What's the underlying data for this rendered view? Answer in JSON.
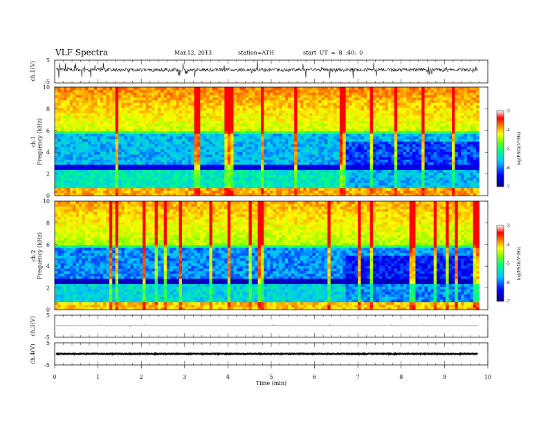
{
  "header": {
    "title": "VLF Spectra",
    "date": "Mar.12, 2013",
    "station": "station=ATH",
    "start": "start UT = 8 :40: 0"
  },
  "colors": {
    "colormap": [
      "#000080",
      "#0000ff",
      "#00c0ff",
      "#00ff80",
      "#80ff00",
      "#ffff00",
      "#ff8000",
      "#ff0000",
      "#ffffff"
    ],
    "trace": "#000000"
  },
  "chart_data": [
    {
      "type": "line",
      "panel": "ch1-waveform",
      "ylabel": "ch.1(V)",
      "ylim": [
        -5,
        5
      ],
      "yticks": [
        "5",
        "-5"
      ],
      "xlim": [
        0,
        10
      ]
    },
    {
      "type": "heatmap",
      "panel": "ch1-spectrogram",
      "ylabel": "ch.1\nFrequency (kHz)",
      "ylim": [
        0,
        10
      ],
      "yticks": [
        "0",
        "2",
        "4",
        "6",
        "8",
        "10"
      ],
      "xlim": [
        0,
        9.8
      ],
      "colorbar": {
        "label": "log(PSD)(V²/Hz)",
        "range": [
          -7,
          -3
        ],
        "ticks": [
          "-3",
          "-4",
          "-5",
          "-6",
          "-7"
        ]
      }
    },
    {
      "type": "heatmap",
      "panel": "ch2-spectrogram",
      "ylabel": "ch.2\nFrequency (kHz)",
      "ylim": [
        0,
        10
      ],
      "yticks": [
        "0",
        "2",
        "4",
        "6",
        "8",
        "10"
      ],
      "xlim": [
        0,
        9.8
      ],
      "colorbar": {
        "label": "log(PSD)(V²/Hz)",
        "range": [
          -7,
          -3
        ],
        "ticks": [
          "-3",
          "-4",
          "-5",
          "-6",
          "-7"
        ]
      }
    },
    {
      "type": "line",
      "panel": "ch3-waveform",
      "ylabel": "ch.3(V)",
      "ylim": [
        -5,
        5
      ],
      "yticks": [
        "5",
        "-5"
      ],
      "xlim": [
        0,
        10
      ]
    },
    {
      "type": "line",
      "panel": "ch4-waveform",
      "ylabel": "ch.4(V)",
      "ylim": [
        -5,
        5
      ],
      "yticks": [
        "5",
        "-5"
      ],
      "xlim": [
        0,
        10
      ]
    },
    {
      "type": "axis",
      "panel": "time-axis",
      "xlabel": "Time (min)",
      "xticks": [
        "0",
        "1",
        "2",
        "3",
        "4",
        "5",
        "6",
        "7",
        "8",
        "9",
        "10"
      ],
      "xlim": [
        0,
        10
      ]
    }
  ]
}
